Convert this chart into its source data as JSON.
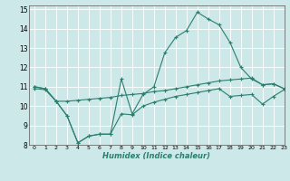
{
  "xlabel": "Humidex (Indice chaleur)",
  "xlim": [
    -0.5,
    23
  ],
  "ylim": [
    8,
    15.2
  ],
  "yticks": [
    8,
    9,
    10,
    11,
    12,
    13,
    14,
    15
  ],
  "xticks": [
    0,
    1,
    2,
    3,
    4,
    5,
    6,
    7,
    8,
    9,
    10,
    11,
    12,
    13,
    14,
    15,
    16,
    17,
    18,
    19,
    20,
    21,
    22,
    23
  ],
  "bg_color": "#cce8e8",
  "grid_color": "#ffffff",
  "line_color": "#2e7d6e",
  "line1_x": [
    0,
    1,
    2,
    3,
    4,
    5,
    6,
    7,
    8,
    9,
    10,
    11,
    12,
    13,
    14,
    15,
    16,
    17,
    18,
    19,
    20,
    21,
    22,
    23
  ],
  "line1_y": [
    11.0,
    10.9,
    10.25,
    9.5,
    8.1,
    8.45,
    8.55,
    8.55,
    11.4,
    9.6,
    10.6,
    11.0,
    12.75,
    13.55,
    13.9,
    14.85,
    14.5,
    14.2,
    13.3,
    12.0,
    11.4,
    11.1,
    11.15,
    10.9
  ],
  "line2_x": [
    0,
    1,
    2,
    3,
    4,
    5,
    6,
    7,
    8,
    9,
    10,
    11,
    12,
    13,
    14,
    15,
    16,
    17,
    18,
    19,
    20,
    21,
    22,
    23
  ],
  "line2_y": [
    11.0,
    10.9,
    10.25,
    10.25,
    10.3,
    10.35,
    10.4,
    10.45,
    10.55,
    10.6,
    10.65,
    10.75,
    10.8,
    10.9,
    11.0,
    11.1,
    11.2,
    11.3,
    11.35,
    11.4,
    11.45,
    11.1,
    11.15,
    10.9
  ],
  "line3_x": [
    0,
    1,
    2,
    3,
    4,
    5,
    6,
    7,
    8,
    9,
    10,
    11,
    12,
    13,
    14,
    15,
    16,
    17,
    18,
    19,
    20,
    21,
    22,
    23
  ],
  "line3_y": [
    10.9,
    10.85,
    10.25,
    9.5,
    8.1,
    8.45,
    8.55,
    8.55,
    9.6,
    9.55,
    10.0,
    10.2,
    10.35,
    10.5,
    10.6,
    10.7,
    10.8,
    10.9,
    10.5,
    10.55,
    10.6,
    10.1,
    10.5,
    10.85
  ],
  "marker": "+"
}
